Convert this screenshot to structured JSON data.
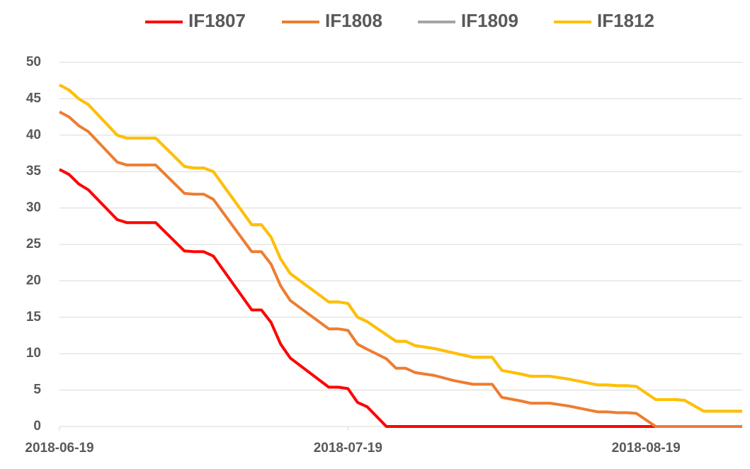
{
  "chart_data": {
    "type": "line",
    "x": [
      "2018-06-19",
      "2018-06-20",
      "2018-06-21",
      "2018-06-22",
      "2018-06-25",
      "2018-06-26",
      "2018-06-29",
      "2018-07-02",
      "2018-07-03",
      "2018-07-04",
      "2018-07-05",
      "2018-07-09",
      "2018-07-10",
      "2018-07-11",
      "2018-07-12",
      "2018-07-13",
      "2018-07-17",
      "2018-07-18",
      "2018-07-19",
      "2018-07-20",
      "2018-07-21",
      "2018-07-23",
      "2018-07-24",
      "2018-07-25",
      "2018-07-26",
      "2018-07-27",
      "2018-07-28",
      "2018-07-30",
      "2018-08-01",
      "2018-08-02",
      "2018-08-03",
      "2018-08-04",
      "2018-08-06",
      "2018-08-07",
      "2018-08-08",
      "2018-08-09",
      "2018-08-11",
      "2018-08-14",
      "2018-08-15",
      "2018-08-16",
      "2018-08-17",
      "2018-08-18",
      "2018-08-20",
      "2018-08-21",
      "2018-08-22",
      "2018-08-23",
      "2018-08-25",
      "2018-08-29"
    ],
    "series": [
      {
        "name": "IF1807",
        "color": "#ff0000",
        "values": [
          35.3,
          34.6,
          33.3,
          32.5,
          28.4,
          28,
          28,
          24.1,
          24,
          24,
          23.4,
          16,
          16,
          14.3,
          11.3,
          9.4,
          5.4,
          5.4,
          5.2,
          3.3,
          2.7,
          0,
          0,
          0,
          0,
          0,
          0,
          0,
          0,
          0,
          0,
          0,
          0,
          0,
          0,
          0,
          0,
          0,
          0,
          0,
          0,
          0,
          0,
          0,
          0,
          0,
          0,
          0
        ]
      },
      {
        "name": "IF1808",
        "color": "#ed7d31",
        "values": [
          43.2,
          42.5,
          41.3,
          40.5,
          36.3,
          35.9,
          35.9,
          32,
          31.9,
          31.9,
          31.2,
          24,
          24,
          22.3,
          19.3,
          17.3,
          13.4,
          13.4,
          13.2,
          11.3,
          10.6,
          9.3,
          8,
          8,
          7.4,
          7.2,
          7,
          6.3,
          5.8,
          5.8,
          5.8,
          4,
          3.5,
          3.2,
          3.2,
          3.2,
          2.8,
          2,
          2,
          1.9,
          1.9,
          1.8,
          0,
          0,
          0,
          0,
          0,
          0
        ]
      },
      {
        "name": "IF1809",
        "color": "#a5a5a5",
        "values": [
          46.9,
          46.2,
          45,
          44.2,
          40,
          39.6,
          39.6,
          35.7,
          35.5,
          35.5,
          35,
          27.7,
          27.7,
          26,
          23,
          21,
          17.1,
          17.1,
          16.9,
          15,
          14.4,
          12.6,
          11.7,
          11.7,
          11.1,
          10.9,
          10.7,
          10.1,
          9.5,
          9.5,
          9.5,
          7.7,
          7.2,
          6.9,
          6.9,
          6.9,
          6.5,
          5.7,
          5.7,
          5.6,
          5.6,
          5.5,
          3.7,
          3.7,
          3.7,
          3.6,
          2.1,
          2.1
        ]
      },
      {
        "name": "IF1812",
        "color": "#ffc000",
        "values": [
          46.9,
          46.2,
          45,
          44.2,
          40,
          39.6,
          39.6,
          35.7,
          35.5,
          35.5,
          35,
          27.7,
          27.7,
          26,
          23,
          21,
          17.1,
          17.1,
          16.9,
          15,
          14.4,
          12.6,
          11.7,
          11.7,
          11.1,
          10.9,
          10.7,
          10.1,
          9.5,
          9.5,
          9.5,
          7.7,
          7.2,
          6.9,
          6.9,
          6.9,
          6.5,
          5.7,
          5.7,
          5.6,
          5.6,
          5.5,
          3.7,
          3.7,
          3.7,
          3.6,
          2.1,
          2.1
        ]
      }
    ],
    "xlim": [
      "2018-06-19",
      "2018-08-29"
    ],
    "xticks": [
      "2018-06-19",
      "2018-07-19",
      "2018-08-19"
    ],
    "ylim": [
      0,
      50
    ],
    "yticks": [
      0,
      5,
      10,
      15,
      20,
      25,
      30,
      35,
      40,
      45,
      50
    ],
    "grid": true,
    "legend": "top"
  }
}
